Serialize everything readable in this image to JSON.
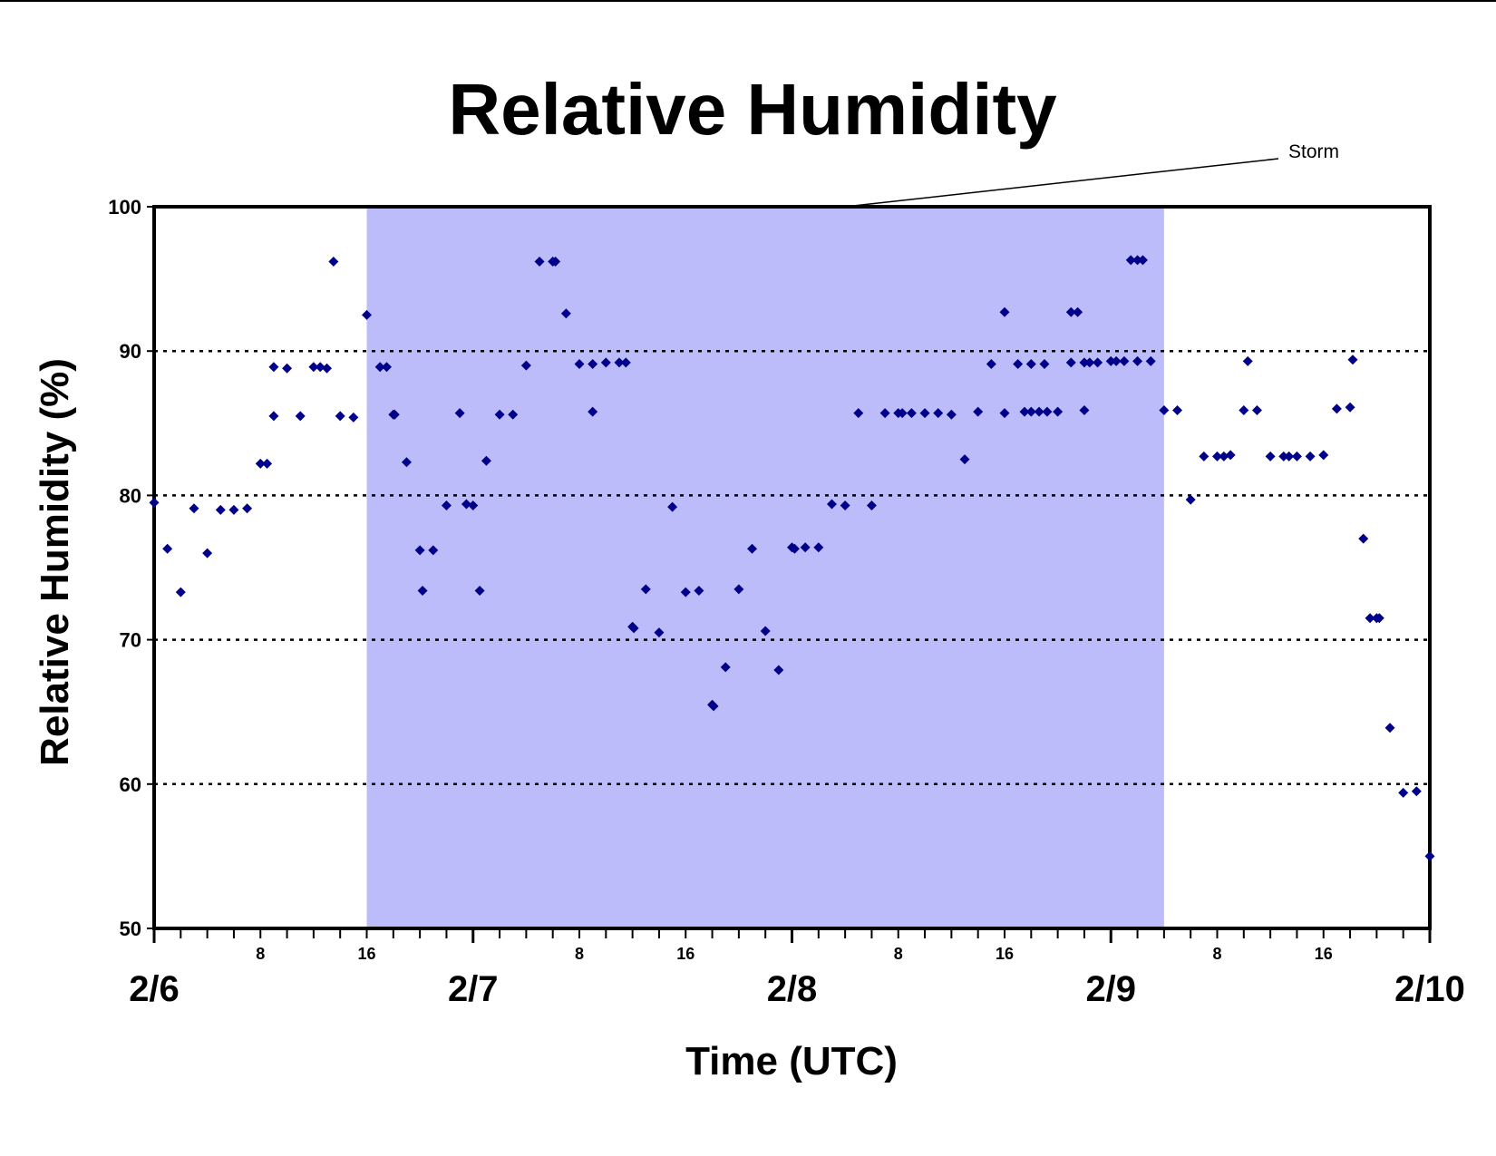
{
  "chart_data": {
    "type": "scatter",
    "title": "Relative Humidity",
    "xlabel": "Time (UTC)",
    "ylabel": "Relative Humidity (%)",
    "ylim": [
      50,
      100
    ],
    "yticks": [
      50,
      60,
      70,
      80,
      90,
      100
    ],
    "xlim": [
      0,
      96
    ],
    "x_unit": "hours from 2/6 00 UTC",
    "x_major_labels": [
      {
        "x": 0,
        "label": "2/6"
      },
      {
        "x": 24,
        "label": "2/7"
      },
      {
        "x": 48,
        "label": "2/8"
      },
      {
        "x": 72,
        "label": "2/9"
      },
      {
        "x": 96,
        "label": "2/10"
      }
    ],
    "x_minor_labels": [
      {
        "x": 8,
        "label": "8"
      },
      {
        "x": 16,
        "label": "16"
      },
      {
        "x": 32,
        "label": "8"
      },
      {
        "x": 40,
        "label": "16"
      },
      {
        "x": 56,
        "label": "8"
      },
      {
        "x": 64,
        "label": "16"
      },
      {
        "x": 80,
        "label": "8"
      },
      {
        "x": 88,
        "label": "16"
      }
    ],
    "gridlines": [
      60,
      70,
      80,
      90
    ],
    "grid": "dotted horizontal",
    "annotation": {
      "text": "Storm",
      "x_start": 16,
      "x_end": 76,
      "color": "#bcbcfb"
    },
    "marker_color": "#00008b",
    "points": [
      [
        0,
        79.5
      ],
      [
        1,
        76.3
      ],
      [
        2,
        73.3
      ],
      [
        3,
        79.1
      ],
      [
        4,
        76
      ],
      [
        5,
        79
      ],
      [
        6,
        79
      ],
      [
        7,
        79.1
      ],
      [
        8,
        82.2
      ],
      [
        8.5,
        82.2
      ],
      [
        9,
        85.5
      ],
      [
        9,
        88.9
      ],
      [
        10,
        88.8
      ],
      [
        11,
        85.5
      ],
      [
        12,
        88.9
      ],
      [
        12.5,
        88.9
      ],
      [
        13,
        88.8
      ],
      [
        13.5,
        96.2
      ],
      [
        14,
        85.5
      ],
      [
        15,
        85.4
      ],
      [
        16,
        92.5
      ],
      [
        17,
        88.9
      ],
      [
        17.5,
        88.9
      ],
      [
        18,
        85.6
      ],
      [
        18.1,
        85.6
      ],
      [
        19,
        82.3
      ],
      [
        20,
        76.2
      ],
      [
        20.2,
        73.4
      ],
      [
        21,
        76.2
      ],
      [
        22,
        79.3
      ],
      [
        23,
        85.7
      ],
      [
        23.5,
        79.4
      ],
      [
        24,
        79.3
      ],
      [
        24.5,
        73.4
      ],
      [
        25,
        82.4
      ],
      [
        26,
        85.6
      ],
      [
        27,
        85.6
      ],
      [
        28,
        89
      ],
      [
        29,
        96.2
      ],
      [
        30,
        96.2
      ],
      [
        30.2,
        96.2
      ],
      [
        31,
        92.6
      ],
      [
        32,
        89.1
      ],
      [
        33,
        89.1
      ],
      [
        33,
        85.8
      ],
      [
        34,
        89.2
      ],
      [
        35,
        89.2
      ],
      [
        35.5,
        89.2
      ],
      [
        36,
        70.9
      ],
      [
        36.1,
        70.8
      ],
      [
        37,
        73.5
      ],
      [
        38,
        70.5
      ],
      [
        39,
        79.2
      ],
      [
        40,
        73.3
      ],
      [
        41,
        73.4
      ],
      [
        42,
        65.5
      ],
      [
        42.1,
        65.4
      ],
      [
        43,
        68.1
      ],
      [
        44,
        73.5
      ],
      [
        45,
        76.3
      ],
      [
        46,
        70.6
      ],
      [
        47,
        67.9
      ],
      [
        48,
        76.4
      ],
      [
        48.2,
        76.3
      ],
      [
        49,
        76.4
      ],
      [
        50,
        76.4
      ],
      [
        51,
        79.4
      ],
      [
        52,
        79.3
      ],
      [
        53,
        85.7
      ],
      [
        54,
        79.3
      ],
      [
        55,
        85.7
      ],
      [
        56,
        85.7
      ],
      [
        56.3,
        85.7
      ],
      [
        57,
        85.7
      ],
      [
        58,
        85.7
      ],
      [
        59,
        85.7
      ],
      [
        60,
        85.6
      ],
      [
        61,
        82.5
      ],
      [
        62,
        85.8
      ],
      [
        63,
        89.1
      ],
      [
        64,
        92.7
      ],
      [
        64,
        85.7
      ],
      [
        65,
        89.1
      ],
      [
        65.5,
        85.8
      ],
      [
        66,
        89.1
      ],
      [
        66,
        85.8
      ],
      [
        66.6,
        85.8
      ],
      [
        67,
        89.1
      ],
      [
        67.2,
        85.8
      ],
      [
        68,
        85.8
      ],
      [
        69,
        92.7
      ],
      [
        69.5,
        92.7
      ],
      [
        69,
        89.2
      ],
      [
        70,
        89.2
      ],
      [
        70.4,
        89.2
      ],
      [
        71,
        89.2
      ],
      [
        70,
        85.9
      ],
      [
        72,
        89.3
      ],
      [
        72.4,
        89.3
      ],
      [
        73,
        89.3
      ],
      [
        73.5,
        96.3
      ],
      [
        74,
        96.3
      ],
      [
        74.4,
        96.3
      ],
      [
        74,
        89.3
      ],
      [
        75,
        89.3
      ],
      [
        76,
        85.9
      ],
      [
        77,
        85.9
      ],
      [
        78,
        79.7
      ],
      [
        79,
        82.7
      ],
      [
        80,
        82.7
      ],
      [
        80.5,
        82.7
      ],
      [
        81,
        82.8
      ],
      [
        82,
        85.9
      ],
      [
        82.3,
        89.3
      ],
      [
        83,
        85.9
      ],
      [
        84,
        82.7
      ],
      [
        85,
        82.7
      ],
      [
        85.4,
        82.7
      ],
      [
        86,
        82.7
      ],
      [
        87,
        82.7
      ],
      [
        88,
        82.8
      ],
      [
        89,
        86
      ],
      [
        90,
        86.1
      ],
      [
        90.2,
        89.4
      ],
      [
        91,
        77
      ],
      [
        91.5,
        71.5
      ],
      [
        92,
        71.5
      ],
      [
        92.2,
        71.5
      ],
      [
        93,
        63.9
      ],
      [
        94,
        59.4
      ],
      [
        95,
        59.5
      ],
      [
        96,
        55
      ]
    ]
  }
}
